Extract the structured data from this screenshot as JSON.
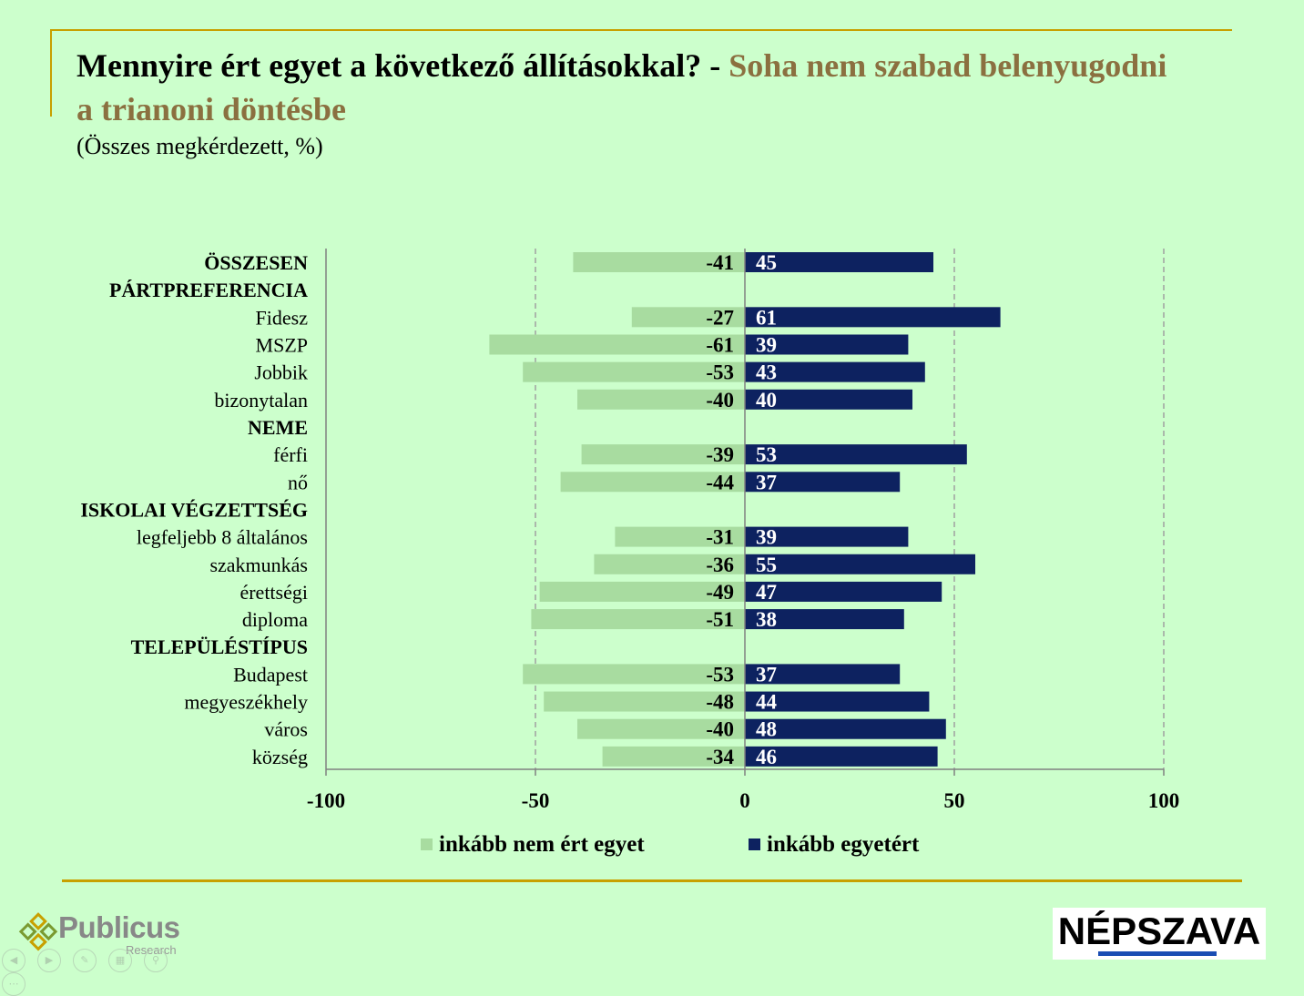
{
  "header": {
    "title_main": "Mennyire ért egyet a következő állításokkal? - ",
    "title_accent": "Soha nem szabad belenyugodni a trianoni döntésbe",
    "subtitle": "(Összes megkérdezett, %)"
  },
  "colors": {
    "background": "#ccffcc",
    "disagree": "#a8dca0",
    "agree": "#0d2260",
    "accent": "#8b7040",
    "rule": "#c8a000"
  },
  "chart_data": {
    "type": "bar",
    "orientation": "horizontal-diverging",
    "title": "Mennyire ért egyet a következő állításokkal? - Soha nem szabad belenyugodni a trianoni döntésbe",
    "subtitle": "(Összes megkérdezett, %)",
    "xlim": [
      -100,
      100
    ],
    "xticks": [
      -100,
      -50,
      0,
      50,
      100
    ],
    "xtick_labels": [
      "-100",
      "-50",
      "0",
      "50",
      "100"
    ],
    "grid": "vertical dashed",
    "legend_position": "bottom",
    "categories": [
      {
        "label": "ÖSSZESEN",
        "group_header": false,
        "bold": true
      },
      {
        "label": "PÁRTPREFERENCIA",
        "group_header": true,
        "bold": true
      },
      {
        "label": "Fidesz",
        "group_header": false,
        "bold": false
      },
      {
        "label": "MSZP",
        "group_header": false,
        "bold": false
      },
      {
        "label": "Jobbik",
        "group_header": false,
        "bold": false
      },
      {
        "label": "bizonytalan",
        "group_header": false,
        "bold": false
      },
      {
        "label": "NEME",
        "group_header": true,
        "bold": true
      },
      {
        "label": "férfi",
        "group_header": false,
        "bold": false
      },
      {
        "label": "nő",
        "group_header": false,
        "bold": false
      },
      {
        "label": "ISKOLAI VÉGZETTSÉG",
        "group_header": true,
        "bold": true
      },
      {
        "label": "legfeljebb 8 általános",
        "group_header": false,
        "bold": false
      },
      {
        "label": "szakmunkás",
        "group_header": false,
        "bold": false
      },
      {
        "label": "érettségi",
        "group_header": false,
        "bold": false
      },
      {
        "label": "diploma",
        "group_header": false,
        "bold": false
      },
      {
        "label": "TELEPÜLÉSTÍPUS",
        "group_header": true,
        "bold": true
      },
      {
        "label": "Budapest",
        "group_header": false,
        "bold": false
      },
      {
        "label": "megyeszékhely",
        "group_header": false,
        "bold": false
      },
      {
        "label": "város",
        "group_header": false,
        "bold": false
      },
      {
        "label": "község",
        "group_header": false,
        "bold": false
      }
    ],
    "series": [
      {
        "name": "inkább nem ért egyet",
        "color_key": "disagree",
        "values": [
          -41,
          null,
          -27,
          -61,
          -53,
          -40,
          null,
          -39,
          -44,
          null,
          -31,
          -36,
          -49,
          -51,
          null,
          -53,
          -48,
          -40,
          -34
        ]
      },
      {
        "name": "inkább egyetért",
        "color_key": "agree",
        "values": [
          45,
          null,
          61,
          39,
          43,
          40,
          null,
          53,
          37,
          null,
          39,
          55,
          47,
          38,
          null,
          37,
          44,
          48,
          46
        ]
      }
    ]
  },
  "logos": {
    "publicus_name": "Publicus",
    "publicus_sub": "Research",
    "nepszava_name": "NÉPSZAVA"
  },
  "nav_icons": [
    "prev-icon",
    "next-icon",
    "pen-icon",
    "slides-icon",
    "zoom-icon",
    "more-icon"
  ]
}
